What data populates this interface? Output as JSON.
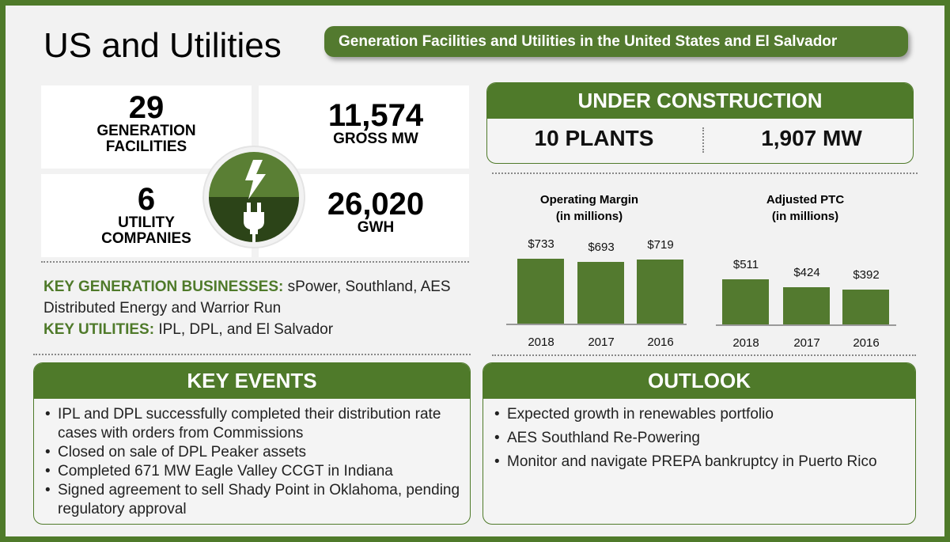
{
  "title": "US and Utilities",
  "subtitle": "Generation Facilities and Utilities in the United States and El Salvador",
  "stats": [
    {
      "value": "29",
      "label1": "GENERATION",
      "label2": "FACILITIES"
    },
    {
      "value": "11,574",
      "label1": "GROSS MW"
    },
    {
      "value": "6",
      "label1": "UTILITY",
      "label2": "COMPANIES"
    },
    {
      "value": "26,020",
      "label1": "GWH"
    }
  ],
  "icons": {
    "top": "lightning-bolt-icon",
    "bottom": "power-plug-icon"
  },
  "key_businesses": {
    "label": "KEY GENERATION BUSINESSES:",
    "text": " sPower, Southland, AES Distributed Energy and Warrior Run"
  },
  "key_utilities": {
    "label": "KEY UTILITIES:",
    "text": " IPL, DPL, and El Salvador"
  },
  "under_construction": {
    "title": "UNDER CONSTRUCTION",
    "plants": "10 PLANTS",
    "mw": "1,907 MW"
  },
  "colors": {
    "accent": "#4f7a2a",
    "bar": "#537a2f"
  },
  "chart_data": [
    {
      "type": "bar",
      "title": "Operating Margin",
      "subtitle": "(in millions)",
      "categories": [
        "2018",
        "2017",
        "2016"
      ],
      "values": [
        733,
        693,
        719
      ],
      "labels": [
        "$733",
        "$693",
        "$719"
      ]
    },
    {
      "type": "bar",
      "title": "Adjusted PTC",
      "subtitle": "(in millions)",
      "categories": [
        "2018",
        "2017",
        "2016"
      ],
      "values": [
        511,
        424,
        392
      ],
      "labels": [
        "$511",
        "$424",
        "$392"
      ]
    }
  ],
  "key_events": {
    "title": "KEY EVENTS",
    "items": [
      "IPL and DPL successfully completed their distribution rate cases with orders from Commissions",
      "Closed on sale of DPL Peaker assets",
      "Completed 671 MW Eagle Valley CCGT in Indiana",
      "Signed agreement to sell Shady Point in Oklahoma, pending regulatory approval"
    ]
  },
  "outlook": {
    "title": "OUTLOOK",
    "items": [
      "Expected growth in renewables portfolio",
      "AES Southland Re-Powering",
      "Monitor and navigate PREPA bankruptcy in Puerto Rico"
    ]
  }
}
